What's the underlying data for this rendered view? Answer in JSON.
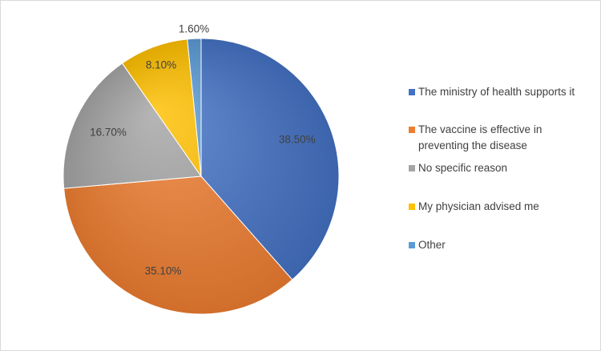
{
  "chart_data": {
    "type": "pie",
    "title": "",
    "categories": [
      "The ministry of health supports it",
      "The vaccine is effective in preventing the disease",
      "No specific reason",
      "My physician advised me",
      "Other"
    ],
    "values": [
      38.5,
      35.1,
      16.7,
      8.1,
      1.6
    ],
    "data_labels": [
      "38.50%",
      "35.10%",
      "16.70%",
      "8.10%",
      "1.60%"
    ],
    "colors": [
      "#4472C4",
      "#ED7D31",
      "#A5A5A5",
      "#FFC000",
      "#5B9BD5"
    ],
    "legend_position": "right",
    "start_angle": "12 o'clock",
    "direction": "clockwise"
  }
}
